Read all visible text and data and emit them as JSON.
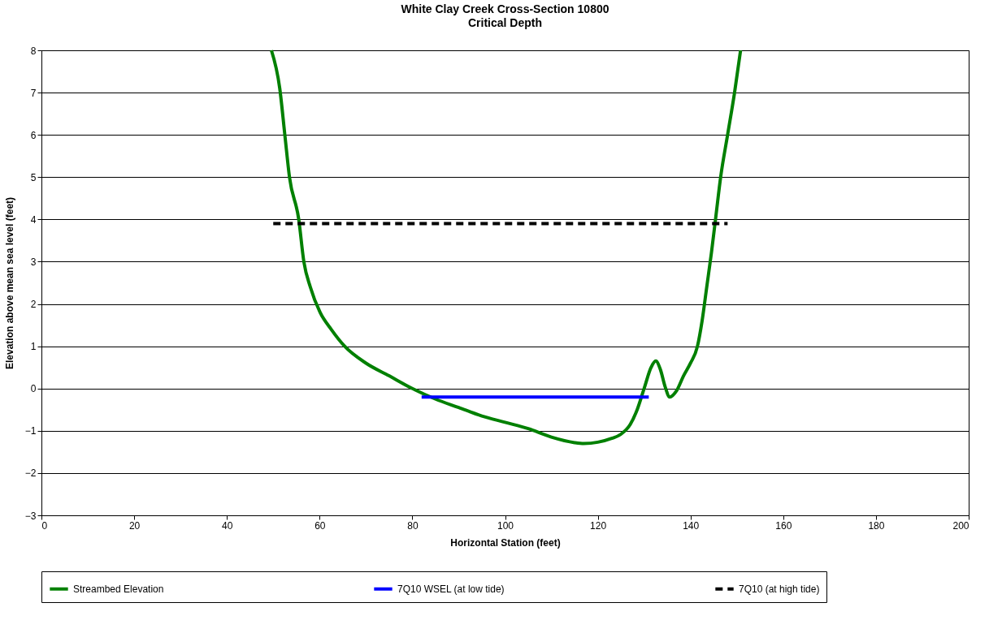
{
  "chart_data": {
    "type": "line",
    "title": "White Clay Creek Cross-Section 10800",
    "subtitle": "Critical Depth",
    "xlabel": "Horizontal Station (feet)",
    "ylabel": "Elevation above mean sea level (feet)",
    "xlim": [
      0,
      200
    ],
    "xticks": [
      0,
      20,
      40,
      60,
      80,
      100,
      120,
      140,
      160,
      180,
      200
    ],
    "ylim": [
      -3,
      8
    ],
    "yticks": [
      -3,
      -2,
      -1,
      0,
      1,
      2,
      3,
      4,
      5,
      6,
      7,
      8
    ],
    "grid": "y",
    "legend": "bottom",
    "marker": "none",
    "series": [
      {
        "name": "Streambed Elevation",
        "color": "#008000",
        "line_style": "solid",
        "x": [
          49.6,
          51.4,
          52.5,
          53.5,
          55.5,
          56.6,
          58,
          60.1,
          62.5,
          65.4,
          70,
          75,
          80,
          85,
          90,
          95,
          100,
          105,
          110,
          115,
          117,
          120,
          123,
          125,
          127,
          128.5,
          130,
          131.5,
          132.5,
          133.5,
          134.5,
          135.5,
          137,
          138.5,
          140,
          141.5,
          142.5,
          143.5,
          144.5,
          145.5,
          146.5,
          148,
          149.5,
          150.8
        ],
        "values": [
          8,
          7.1,
          6,
          5,
          4,
          3,
          2.4,
          1.8,
          1.4,
          1,
          0.6,
          0.3,
          0,
          -0.25,
          -0.45,
          -0.65,
          -0.8,
          -0.95,
          -1.15,
          -1.28,
          -1.3,
          -1.27,
          -1.18,
          -1.08,
          -0.85,
          -0.5,
          0,
          0.5,
          0.65,
          0.45,
          0.05,
          -0.2,
          -0.05,
          0.3,
          0.6,
          1,
          1.6,
          2.4,
          3.2,
          4.1,
          5,
          6,
          7,
          8
        ]
      },
      {
        "name": "7Q10 WSEL (at low tide)",
        "color": "#0000ff",
        "line_style": "solid",
        "x": [
          82,
          131
        ],
        "values": [
          -0.2,
          -0.2
        ]
      },
      {
        "name": "7Q10 (at high tide)",
        "color": "#000000",
        "line_style": "dashed",
        "x": [
          50,
          148
        ],
        "values": [
          3.9,
          3.9
        ]
      }
    ]
  }
}
